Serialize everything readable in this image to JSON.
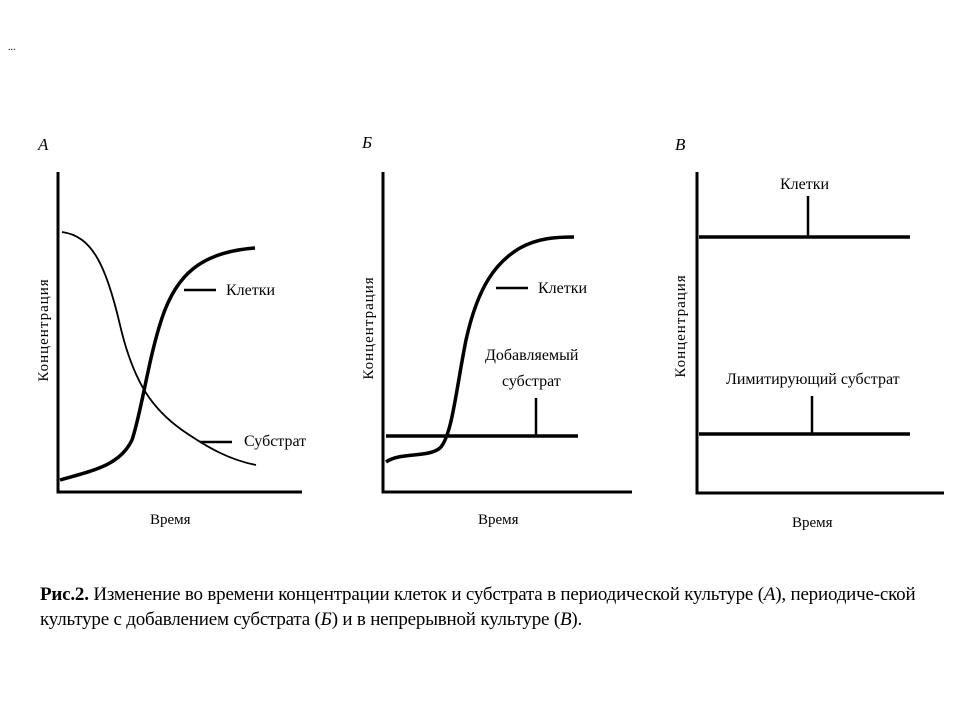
{
  "header_mark": "...",
  "panels": [
    {
      "id": "A",
      "label": "А",
      "ylabel": "Концентрация",
      "xlabel": "Время",
      "curves": [
        {
          "name": "Клетки"
        },
        {
          "name": "Субстрат"
        }
      ]
    },
    {
      "id": "B",
      "label": "Б",
      "ylabel": "Концентрация",
      "xlabel": "Время",
      "curves": [
        {
          "name": "Клетки"
        },
        {
          "name": "Добавляемый субстрат",
          "line1": "Добавляемый",
          "line2": "субстрат"
        }
      ]
    },
    {
      "id": "V",
      "label": "В",
      "ylabel": "Концентрация",
      "xlabel": "Время",
      "curves": [
        {
          "name": "Клетки"
        },
        {
          "name": "Лимитирующий субстрат"
        }
      ]
    }
  ],
  "caption": {
    "lead": "Рис.2.",
    "text1": " Изменение во времени концентрации клеток и субстрата в периодической культуре (",
    "a": "А",
    "text2": "), периодиче-ской культуре с добавлением субстрата (",
    "b": "Б",
    "text3": ") и в непрерывной культуре (",
    "v": "В",
    "text4": ")."
  }
}
